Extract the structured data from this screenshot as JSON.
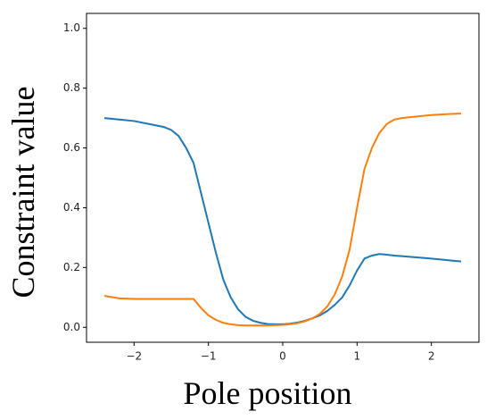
{
  "chart_data": {
    "type": "line",
    "x_label": "Pole position",
    "y_label": "Constraint value",
    "x": [
      -2.4,
      -2.2,
      -2.0,
      -1.8,
      -1.6,
      -1.5,
      -1.4,
      -1.3,
      -1.2,
      -1.1,
      -1.0,
      -0.9,
      -0.8,
      -0.7,
      -0.6,
      -0.5,
      -0.4,
      -0.3,
      -0.2,
      -0.1,
      0,
      0.1,
      0.2,
      0.3,
      0.4,
      0.5,
      0.6,
      0.7,
      0.8,
      0.9,
      1.0,
      1.1,
      1.2,
      1.3,
      1.4,
      1.5,
      1.6,
      1.8,
      2.0,
      2.2,
      2.4
    ],
    "series": [
      {
        "color": "#1f77b4",
        "values": [
          0.7,
          0.695,
          0.69,
          0.68,
          0.67,
          0.66,
          0.64,
          0.6,
          0.55,
          0.45,
          0.35,
          0.25,
          0.16,
          0.1,
          0.06,
          0.035,
          0.022,
          0.015,
          0.011,
          0.01,
          0.01,
          0.012,
          0.016,
          0.022,
          0.03,
          0.04,
          0.055,
          0.075,
          0.1,
          0.14,
          0.19,
          0.23,
          0.24,
          0.245,
          0.243,
          0.24,
          0.238,
          0.234,
          0.23,
          0.225,
          0.22
        ]
      },
      {
        "color": "#ff7f0e",
        "values": [
          0.105,
          0.097,
          0.095,
          0.095,
          0.095,
          0.095,
          0.095,
          0.095,
          0.095,
          0.065,
          0.04,
          0.025,
          0.015,
          0.01,
          0.007,
          0.006,
          0.006,
          0.006,
          0.006,
          0.007,
          0.008,
          0.01,
          0.014,
          0.02,
          0.03,
          0.045,
          0.07,
          0.11,
          0.17,
          0.26,
          0.4,
          0.53,
          0.6,
          0.65,
          0.68,
          0.695,
          0.7,
          0.705,
          0.71,
          0.713,
          0.715
        ]
      }
    ],
    "xlim": [
      -2.64,
      2.64
    ],
    "xticks": [
      {
        "value": -2,
        "label": "−2"
      },
      {
        "value": -1,
        "label": "−1"
      },
      0,
      1,
      2
    ],
    "ylim": [
      -0.05,
      1.05
    ],
    "yticks": [
      {
        "value": 0,
        "label": "0.0"
      },
      {
        "value": 0.2,
        "label": "0.2"
      },
      {
        "value": 0.4,
        "label": "0.4"
      },
      {
        "value": 0.6,
        "label": "0.6"
      },
      {
        "value": 0.8,
        "label": "0.8"
      },
      {
        "value": 1.0,
        "label": "1.0"
      }
    ],
    "grid": false
  }
}
